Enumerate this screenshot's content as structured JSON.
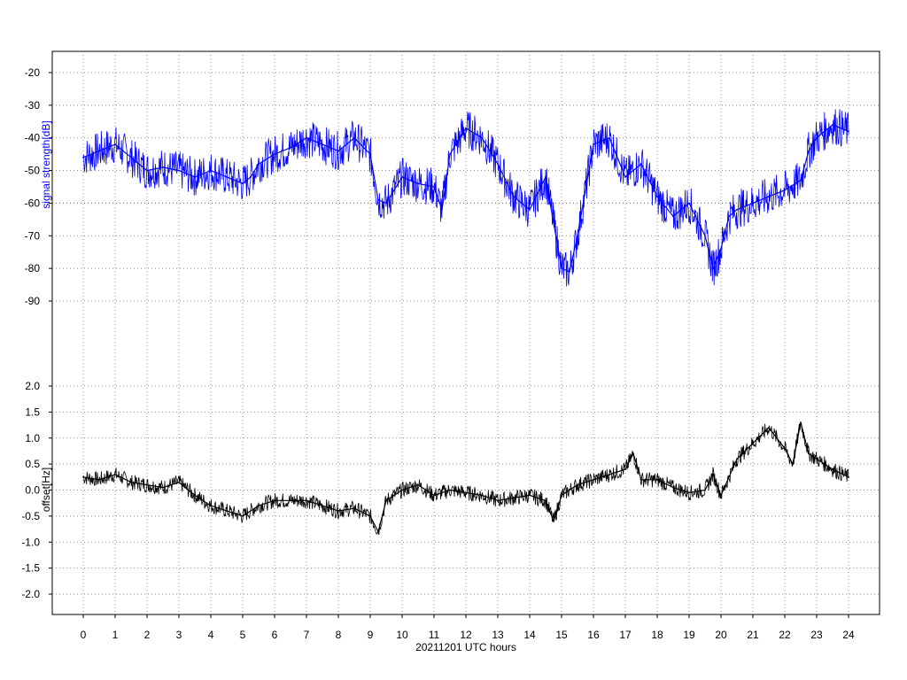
{
  "chart_data": [
    {
      "type": "line",
      "ylabel": "signal strength[dB]",
      "xlabel": "20211201 UTC hours",
      "xlim": [
        0,
        24
      ],
      "ylim": [
        -100,
        -15
      ],
      "yticks": [
        -20,
        -30,
        -40,
        -50,
        -60,
        -70,
        -80,
        -90
      ],
      "xticks": [
        0,
        1,
        2,
        3,
        4,
        5,
        6,
        7,
        8,
        9,
        10,
        11,
        12,
        13,
        14,
        15,
        16,
        17,
        18,
        19,
        20,
        21,
        22,
        23,
        24
      ],
      "grid": true,
      "series_color": "#0000ff",
      "x": [
        0,
        0.5,
        1,
        1.5,
        2,
        2.5,
        3,
        3.5,
        4,
        4.5,
        5,
        5.25,
        5.5,
        6,
        6.5,
        7,
        7.5,
        8,
        8.5,
        9,
        9.25,
        9.5,
        10,
        10.5,
        11,
        11.25,
        11.5,
        12,
        12.5,
        13,
        13.5,
        14,
        14.5,
        14.75,
        15,
        15.25,
        15.5,
        16,
        16.5,
        17,
        17.5,
        18,
        18.5,
        19,
        19.5,
        19.75,
        20,
        20.25,
        20.5,
        21,
        21.5,
        22,
        22.5,
        22.75,
        23,
        23.5,
        24
      ],
      "y": [
        -46,
        -44,
        -42,
        -46,
        -50,
        -49,
        -50,
        -52,
        -50,
        -52,
        -54,
        -52,
        -48,
        -45,
        -43,
        -40,
        -42,
        -44,
        -40,
        -45,
        -59,
        -60,
        -52,
        -54,
        -55,
        -62,
        -45,
        -37,
        -40,
        -48,
        -58,
        -62,
        -52,
        -66,
        -80,
        -81,
        -70,
        -42,
        -40,
        -52,
        -48,
        -58,
        -64,
        -60,
        -70,
        -80,
        -74,
        -64,
        -62,
        -60,
        -58,
        -56,
        -53,
        -44,
        -40,
        -36,
        -38
      ]
    },
    {
      "type": "line",
      "ylabel": "offset[Hz]",
      "xlim": [
        0,
        24
      ],
      "ylim": [
        -2.4,
        2.4
      ],
      "yticks": [
        2.0,
        1.5,
        1.0,
        0.5,
        0.0,
        -0.5,
        -1.0,
        -1.5,
        -2.0
      ],
      "yticklabels": [
        "2.0",
        "1.5",
        "1.0",
        "0.5",
        "0.0",
        "-0.5",
        "-1.0",
        "-1.5",
        "-2.0"
      ],
      "xticks": [
        0,
        1,
        2,
        3,
        4,
        5,
        6,
        7,
        8,
        9,
        10,
        11,
        12,
        13,
        14,
        15,
        16,
        17,
        18,
        19,
        20,
        21,
        22,
        23,
        24
      ],
      "grid": true,
      "series_color": "#000000",
      "x": [
        0,
        0.5,
        1,
        1.5,
        2,
        2.5,
        3,
        3.5,
        4,
        4.5,
        5,
        5.5,
        6,
        6.5,
        7,
        7.5,
        8,
        8.5,
        9,
        9.25,
        9.5,
        10,
        10.5,
        11,
        11.5,
        12,
        12.5,
        13,
        13.5,
        14,
        14.5,
        14.75,
        15,
        15.5,
        16,
        16.5,
        17,
        17.25,
        17.5,
        18,
        18.5,
        19,
        19.5,
        19.75,
        20,
        20.5,
        21,
        21.5,
        22,
        22.25,
        22.5,
        22.75,
        23,
        23.5,
        24
      ],
      "y": [
        0.25,
        0.2,
        0.3,
        0.15,
        0.1,
        0.05,
        0.15,
        -0.1,
        -0.3,
        -0.4,
        -0.5,
        -0.3,
        -0.2,
        -0.2,
        -0.2,
        -0.3,
        -0.4,
        -0.35,
        -0.5,
        -0.8,
        -0.2,
        0.0,
        0.1,
        -0.1,
        0.0,
        -0.05,
        -0.1,
        -0.2,
        -0.15,
        -0.1,
        -0.2,
        -0.6,
        -0.1,
        0.1,
        0.2,
        0.3,
        0.4,
        0.7,
        0.2,
        0.2,
        0.05,
        -0.05,
        0.0,
        0.3,
        -0.1,
        0.6,
        0.9,
        1.2,
        0.8,
        0.5,
        1.3,
        0.7,
        0.6,
        0.4,
        0.25
      ]
    }
  ]
}
